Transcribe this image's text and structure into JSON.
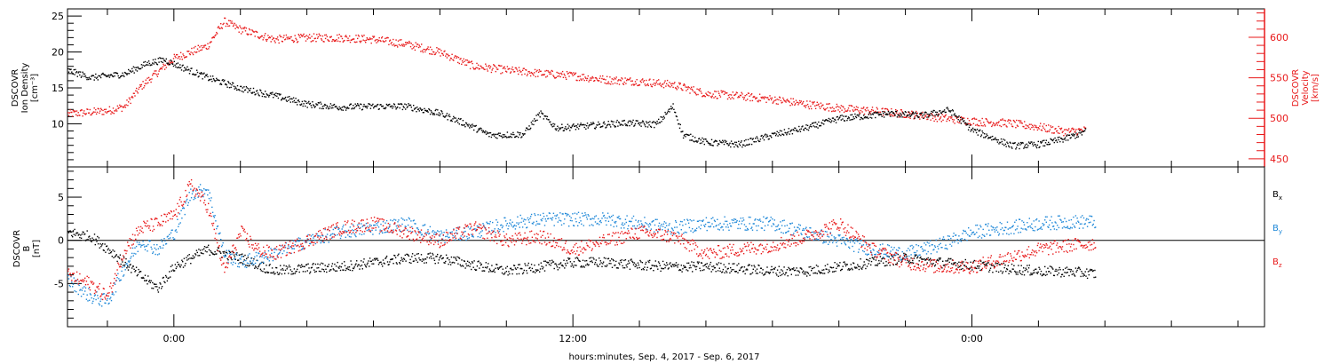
{
  "chart_data": [
    {
      "type": "scatter",
      "xlabel": "hours:minutes, Sep.  4, 2017 - Sep.  6, 2017",
      "x_ticks": [
        "0:00",
        "12:00",
        "0:00"
      ],
      "x_tick_hours": [
        0,
        12,
        24
      ],
      "xlim_hours": [
        -3.2,
        32.8
      ],
      "data_end_hour": 20.6,
      "left_axis": {
        "label_lines": [
          "DSCOVR",
          "Ion Density",
          "[cm⁻³]"
        ],
        "ylim": [
          4,
          26
        ],
        "ticks": [
          10,
          15,
          20,
          25
        ],
        "color": "#000000"
      },
      "right_axis": {
        "label_lines": [
          "DSCOVR",
          "Velocity",
          "[km/s]"
        ],
        "ylim": [
          440,
          635
        ],
        "ticks": [
          450,
          500,
          550,
          600
        ],
        "color": "#e8191a"
      },
      "series": [
        {
          "axis": "left",
          "color": "#000000",
          "points": [
            [
              -3.2,
              17.5
            ],
            [
              -2.5,
              16.5
            ],
            [
              -1.5,
              17.0
            ],
            [
              -0.8,
              18.5
            ],
            [
              -0.3,
              19.0
            ],
            [
              0.2,
              18.0
            ],
            [
              1,
              16.5
            ],
            [
              2,
              15.0
            ],
            [
              3,
              14.0
            ],
            [
              4,
              12.8
            ],
            [
              5,
              12.4
            ],
            [
              6,
              12.5
            ],
            [
              7,
              12.5
            ],
            [
              8,
              11.5
            ],
            [
              8.8,
              10.0
            ],
            [
              9.5,
              8.5
            ],
            [
              10.5,
              8.6
            ],
            [
              11,
              11.5
            ],
            [
              11.5,
              9.5
            ],
            [
              12.5,
              9.8
            ],
            [
              13.5,
              10.2
            ],
            [
              14.5,
              10.0
            ],
            [
              15,
              12.5
            ],
            [
              15.3,
              8.5
            ],
            [
              16,
              7.5
            ],
            [
              17,
              7.2
            ],
            [
              18,
              8.5
            ],
            [
              19,
              9.5
            ],
            [
              20,
              10.8
            ],
            [
              21.5,
              11.5
            ],
            [
              22.5,
              11.2
            ],
            [
              23.3,
              12.0
            ],
            [
              24,
              9.2
            ],
            [
              25.2,
              7.0
            ],
            [
              26,
              7.2
            ],
            [
              26.8,
              8.0
            ],
            [
              27.4,
              9.0
            ]
          ]
        },
        {
          "axis": "right",
          "color": "#e8191a",
          "points": [
            [
              -3.2,
              506
            ],
            [
              -2,
              510
            ],
            [
              -1.5,
              515
            ],
            [
              -1,
              540
            ],
            [
              0,
              575
            ],
            [
              1,
              590
            ],
            [
              1.5,
              620
            ],
            [
              2,
              610
            ],
            [
              3,
              598
            ],
            [
              4,
              600
            ],
            [
              5,
              600
            ],
            [
              6,
              598
            ],
            [
              7,
              592
            ],
            [
              8,
              582
            ],
            [
              9,
              565
            ],
            [
              10,
              560
            ],
            [
              11,
              556
            ],
            [
              12,
              553
            ],
            [
              13,
              548
            ],
            [
              14,
              546
            ],
            [
              15,
              542
            ],
            [
              16,
              531
            ],
            [
              17,
              528
            ],
            [
              18,
              524
            ],
            [
              19,
              518
            ],
            [
              20,
              513
            ],
            [
              21.5,
              508
            ],
            [
              22.5,
              504
            ],
            [
              23.5,
              499
            ],
            [
              24.3,
              496
            ],
            [
              25,
              495
            ],
            [
              26,
              490
            ],
            [
              26.8,
              484
            ],
            [
              27.4,
              486
            ]
          ]
        }
      ]
    },
    {
      "type": "scatter",
      "left_axis": {
        "label_lines": [
          "DSCOVR",
          "B",
          "[nT]"
        ],
        "ylim": [
          -10,
          8.5
        ],
        "ticks": [
          -5,
          0,
          5
        ],
        "color": "#000000"
      },
      "zero_line": true,
      "legend_placement": "right",
      "series": [
        {
          "name": "Bₓ",
          "color": "#000000",
          "points": [
            [
              -3.2,
              1.0
            ],
            [
              -2.5,
              0.5
            ],
            [
              -1.8,
              -1.5
            ],
            [
              -1.2,
              -3.5
            ],
            [
              -0.5,
              -5.5
            ],
            [
              0,
              -3.0
            ],
            [
              0.5,
              -2.0
            ],
            [
              1,
              -1.0
            ],
            [
              2,
              -2.0
            ],
            [
              3,
              -3.5
            ],
            [
              4,
              -3.2
            ],
            [
              5,
              -3.0
            ],
            [
              6,
              -2.5
            ],
            [
              7,
              -2.0
            ],
            [
              8,
              -2.0
            ],
            [
              9,
              -2.8
            ],
            [
              10,
              -3.5
            ],
            [
              11,
              -3.0
            ],
            [
              12,
              -2.5
            ],
            [
              13,
              -2.5
            ],
            [
              14,
              -2.8
            ],
            [
              15,
              -3.0
            ],
            [
              16,
              -3.0
            ],
            [
              17,
              -3.2
            ],
            [
              18,
              -3.5
            ],
            [
              19,
              -3.5
            ],
            [
              20,
              -3.0
            ],
            [
              21,
              -2.5
            ],
            [
              22,
              -2.0
            ],
            [
              23,
              -2.5
            ],
            [
              24,
              -2.8
            ],
            [
              25,
              -3.2
            ],
            [
              26,
              -3.5
            ],
            [
              27,
              -3.6
            ],
            [
              27.7,
              -3.8
            ]
          ]
        },
        {
          "name": "Bᵧ",
          "color": "#1f88d8",
          "points": [
            [
              -3.2,
              -4.5
            ],
            [
              -2.5,
              -6.5
            ],
            [
              -2,
              -7.0
            ],
            [
              -1.5,
              -3.0
            ],
            [
              -1,
              0.0
            ],
            [
              -0.5,
              -1.0
            ],
            [
              0,
              1.0
            ],
            [
              0.5,
              5.5
            ],
            [
              1,
              6.0
            ],
            [
              1.5,
              -1.5
            ],
            [
              2,
              -2.5
            ],
            [
              3,
              -1.5
            ],
            [
              4,
              0.0
            ],
            [
              5,
              1.0
            ],
            [
              6,
              1.5
            ],
            [
              7,
              2.0
            ],
            [
              8,
              0.5
            ],
            [
              9,
              1.0
            ],
            [
              10,
              2.0
            ],
            [
              11,
              2.5
            ],
            [
              12,
              2.5
            ],
            [
              13,
              2.5
            ],
            [
              14,
              2.0
            ],
            [
              15,
              1.5
            ],
            [
              16,
              2.0
            ],
            [
              17,
              2.0
            ],
            [
              18,
              2.0
            ],
            [
              19,
              1.0
            ],
            [
              20,
              0.0
            ],
            [
              21,
              -1.0
            ],
            [
              22,
              -1.5
            ],
            [
              23,
              -0.5
            ],
            [
              24,
              1.0
            ],
            [
              25,
              1.5
            ],
            [
              26,
              2.0
            ],
            [
              27,
              2.2
            ],
            [
              27.7,
              2.2
            ]
          ]
        },
        {
          "name": "Bₓz",
          "color": "#e8191a",
          "points": [
            [
              -3.2,
              -4.0
            ],
            [
              -2.5,
              -5.0
            ],
            [
              -2,
              -6.5
            ],
            [
              -1.5,
              -1.0
            ],
            [
              -1,
              1.5
            ],
            [
              -0.5,
              2.0
            ],
            [
              0,
              3.0
            ],
            [
              0.5,
              6.5
            ],
            [
              1,
              4.0
            ],
            [
              1.5,
              -3.5
            ],
            [
              2,
              1.0
            ],
            [
              2.5,
              -1.0
            ],
            [
              3,
              -1.5
            ],
            [
              4,
              0.0
            ],
            [
              5,
              1.5
            ],
            [
              6,
              2.0
            ],
            [
              7,
              1.0
            ],
            [
              8,
              0.0
            ],
            [
              9,
              1.5
            ],
            [
              10,
              0.0
            ],
            [
              11,
              0.5
            ],
            [
              12,
              -1.0
            ],
            [
              13,
              0.0
            ],
            [
              14,
              1.0
            ],
            [
              15,
              0.5
            ],
            [
              16,
              -1.5
            ],
            [
              17,
              -1.0
            ],
            [
              18,
              -0.5
            ],
            [
              19,
              0.5
            ],
            [
              20,
              2.0
            ],
            [
              21,
              -1.0
            ],
            [
              22,
              -2.5
            ],
            [
              23,
              -3.0
            ],
            [
              24,
              -3.0
            ],
            [
              25,
              -2.0
            ],
            [
              26,
              -1.0
            ],
            [
              27,
              -0.5
            ],
            [
              27.7,
              -0.3
            ]
          ]
        }
      ]
    }
  ]
}
